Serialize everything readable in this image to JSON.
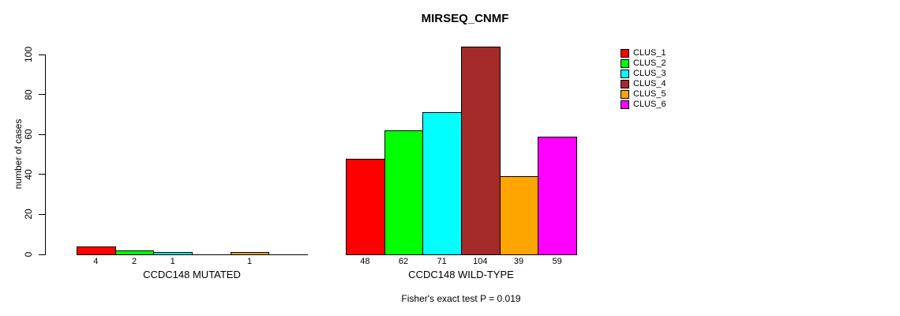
{
  "chart_data": {
    "type": "bar",
    "title": "MIRSEQ_CNMF",
    "ylabel": "number of cases",
    "xlabel": "",
    "ylim": [
      0,
      104
    ],
    "yticks": [
      0,
      20,
      40,
      60,
      80,
      100
    ],
    "grid": false,
    "legend_position": "top-right",
    "categories": [
      "CCDC148 MUTATED",
      "CCDC148 WILD-TYPE"
    ],
    "series": [
      {
        "name": "CLUS_1",
        "color": "#FF0000",
        "values": [
          4,
          48
        ]
      },
      {
        "name": "CLUS_2",
        "color": "#00FF00",
        "values": [
          2,
          62
        ]
      },
      {
        "name": "CLUS_3",
        "color": "#00FFFF",
        "values": [
          1,
          71
        ]
      },
      {
        "name": "CLUS_4",
        "color": "#A52A2A",
        "values": [
          0,
          104
        ]
      },
      {
        "name": "CLUS_5",
        "color": "#FFA500",
        "values": [
          1,
          39
        ]
      },
      {
        "name": "CLUS_6",
        "color": "#FF00FF",
        "values": [
          0,
          59
        ]
      }
    ],
    "bar_value_labels": [
      [
        "4",
        "2",
        "1",
        "",
        "1",
        ""
      ],
      [
        "48",
        "62",
        "71",
        "104",
        "39",
        "59"
      ]
    ],
    "annotation": "Fisher's exact test P = 0.019"
  },
  "colors": {
    "axis": "#000000",
    "background": "#ffffff",
    "text": "#000000"
  }
}
